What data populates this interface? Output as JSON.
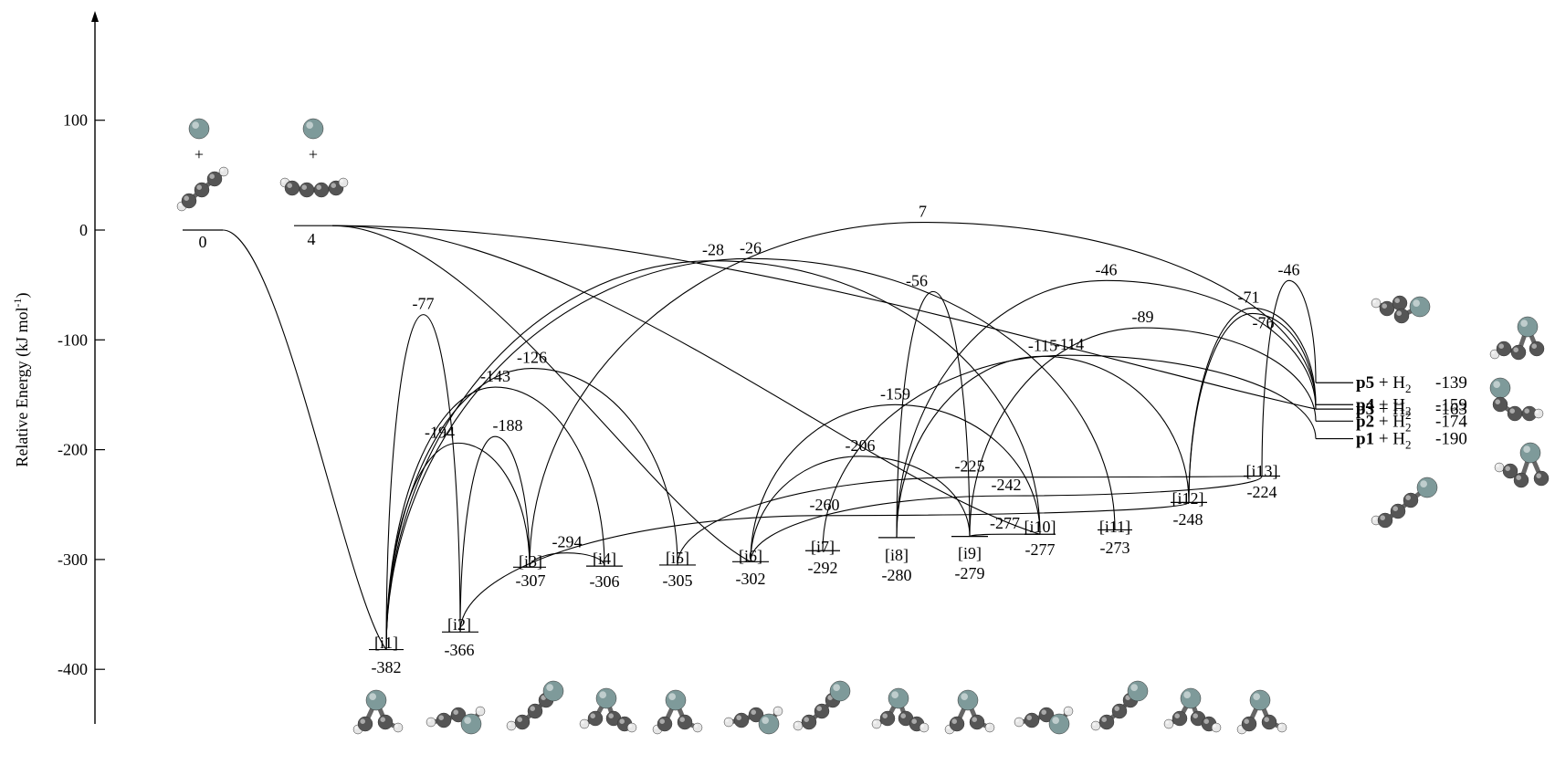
{
  "axis": {
    "ylabel": "Relative Energy (kJ mol",
    "ylabel_sup": "-1",
    "ylabel_close": ")",
    "ticks": [
      100,
      0,
      -100,
      -200,
      -300,
      -400
    ],
    "range": [
      -430,
      190
    ]
  },
  "colors": {
    "line": "#000000",
    "carbon": "#555555",
    "hydrogen": "#e6e6e6",
    "metal": "#7e9a9a"
  },
  "reactants": [
    {
      "id": "R1",
      "energy": 0,
      "label": "0",
      "plus": "+"
    },
    {
      "id": "R2",
      "energy": 4,
      "label": "4",
      "plus": "+"
    }
  ],
  "intermediates": [
    {
      "id": "i1",
      "tag": "[i1]",
      "energy": -382,
      "label": "-382"
    },
    {
      "id": "i2",
      "tag": "[i2]",
      "energy": -366,
      "label": "-366"
    },
    {
      "id": "i3",
      "tag": "[i3]",
      "energy": -307,
      "label": "-307"
    },
    {
      "id": "i4",
      "tag": "[i4]",
      "energy": -306,
      "label": "-306"
    },
    {
      "id": "i5",
      "tag": "[i5]",
      "energy": -305,
      "label": "-305"
    },
    {
      "id": "i6",
      "tag": "[i6]",
      "energy": -302,
      "label": "-302"
    },
    {
      "id": "i7",
      "tag": "[i7]",
      "energy": -292,
      "label": "-292"
    },
    {
      "id": "i8",
      "tag": "[i8]",
      "energy": -280,
      "label": "-280"
    },
    {
      "id": "i9",
      "tag": "[i9]",
      "energy": -279,
      "label": "-279"
    },
    {
      "id": "i10",
      "tag": "[i10]",
      "energy": -277,
      "label": "-277"
    },
    {
      "id": "i11",
      "tag": "[i11]",
      "energy": -273,
      "label": "-273"
    },
    {
      "id": "i12",
      "tag": "[i12]",
      "energy": -248,
      "label": "-248"
    },
    {
      "id": "i13",
      "tag": "[i13]",
      "energy": -224,
      "label": "-224"
    }
  ],
  "products": [
    {
      "id": "p5",
      "name": "p5",
      "suffix": " + H",
      "sub": "2",
      "value": "-139",
      "energy": -139
    },
    {
      "id": "p4",
      "name": "p4",
      "suffix": " + H",
      "sub": "2",
      "value": "-159",
      "energy": -159
    },
    {
      "id": "p3",
      "name": "p3",
      "suffix": " + H",
      "sub": "2",
      "value": "-163",
      "energy": -163
    },
    {
      "id": "p2",
      "name": "p2",
      "suffix": " + H",
      "sub": "2",
      "value": "-174",
      "energy": -174
    },
    {
      "id": "p1",
      "name": "p1",
      "suffix": " + H",
      "sub": "2",
      "value": "-190",
      "energy": -190
    }
  ],
  "transition_states": [
    {
      "from": "R1",
      "to": "i1",
      "barrier": null
    },
    {
      "from": "R2",
      "to": "i6",
      "barrier": null
    },
    {
      "from": "R2",
      "to": "i10",
      "barrier": null
    },
    {
      "from": "R2",
      "to": "p3",
      "barrier": null
    },
    {
      "from": "i1",
      "to": "i2",
      "barrier": -77,
      "label": "-77"
    },
    {
      "from": "i1",
      "to": "i3",
      "barrier": -194,
      "label": "-194"
    },
    {
      "from": "i2",
      "to": "i3",
      "barrier": -188,
      "label": "-188"
    },
    {
      "from": "i1",
      "to": "i4",
      "barrier": -143,
      "label": "-143"
    },
    {
      "from": "i1",
      "to": "i5",
      "barrier": -126,
      "label": "-126"
    },
    {
      "from": "i3",
      "to": "i4",
      "barrier": -294,
      "label": "-294"
    },
    {
      "from": "i1",
      "to": "i10",
      "barrier": -28,
      "label": "-28"
    },
    {
      "from": "i1",
      "to": "i11",
      "barrier": -26,
      "label": "-26"
    },
    {
      "from": "i2",
      "to": "i12",
      "barrier": -260,
      "label": "-260"
    },
    {
      "from": "i6",
      "to": "i9",
      "barrier": -206,
      "label": "-206"
    },
    {
      "from": "i6",
      "to": "i10",
      "barrier": -159,
      "label": "-159"
    },
    {
      "from": "i6",
      "to": "i13",
      "barrier": -242,
      "label": "-242"
    },
    {
      "from": "i8",
      "to": "i9",
      "barrier": -56,
      "label": "-56"
    },
    {
      "from": "i9",
      "to": "i10",
      "barrier": -277,
      "label": "-277"
    },
    {
      "from": "i8",
      "to": "p3",
      "barrier": -46,
      "label": "-46"
    },
    {
      "from": "i9",
      "to": "p2",
      "barrier": -89,
      "label": "-89"
    },
    {
      "from": "i8",
      "to": "i12",
      "barrier": -115,
      "label": "-115"
    },
    {
      "from": "i7",
      "to": "p1",
      "barrier": -114,
      "label": "-114"
    },
    {
      "from": "i3",
      "to": "p4",
      "barrier": 7,
      "label": "7"
    },
    {
      "from": "i12",
      "to": "p4",
      "barrier": -71,
      "label": "-71"
    },
    {
      "from": "i12",
      "to": "p3",
      "barrier": -76,
      "label": "-76"
    },
    {
      "from": "i13",
      "to": "p5",
      "barrier": -46,
      "label": "-46"
    },
    {
      "from": "i5",
      "to": "i13",
      "barrier": -225,
      "label": "-225"
    }
  ],
  "structures": [
    "reactant-1",
    "reactant-2",
    "i1",
    "i2",
    "i3",
    "i4",
    "i5",
    "i6",
    "i7",
    "i8",
    "i9",
    "i10",
    "i11",
    "i12",
    "i13",
    "p5",
    "p4",
    "p3",
    "p2",
    "p1"
  ]
}
